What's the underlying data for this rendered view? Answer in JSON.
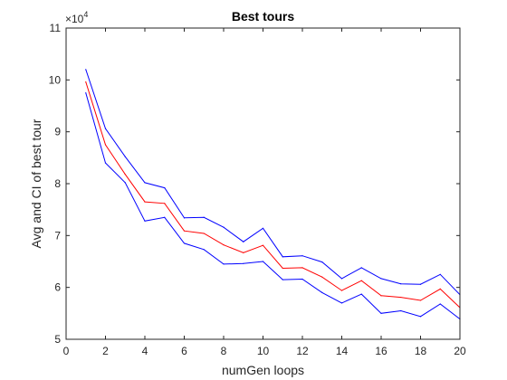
{
  "chart_data": {
    "type": "line",
    "title": "Best tours",
    "xlabel": "numGen loops",
    "ylabel": "Avg and CI of best tour",
    "y_exponent_base": "×10",
    "y_exponent_power": "4",
    "xlim": [
      0,
      20
    ],
    "ylim": [
      5,
      11
    ],
    "xticks": [
      0,
      2,
      4,
      6,
      8,
      10,
      12,
      14,
      16,
      18,
      20
    ],
    "yticks": [
      5,
      6,
      7,
      8,
      9,
      10,
      11
    ],
    "grid": false,
    "legend": "none",
    "x": [
      1,
      2,
      3,
      4,
      5,
      6,
      7,
      8,
      9,
      10,
      11,
      12,
      13,
      14,
      15,
      16,
      17,
      18,
      19,
      20
    ],
    "series": [
      {
        "color": "#0000ff",
        "values": [
          10.2,
          9.06,
          8.52,
          8.02,
          7.92,
          7.34,
          7.35,
          7.16,
          6.88,
          7.14,
          6.59,
          6.61,
          6.49,
          6.17,
          6.38,
          6.17,
          6.07,
          6.06,
          6.25,
          5.86
        ]
      },
      {
        "color": "#ff0000",
        "values": [
          9.96,
          8.75,
          8.18,
          7.65,
          7.62,
          7.09,
          7.04,
          6.82,
          6.67,
          6.81,
          6.37,
          6.38,
          6.2,
          5.94,
          6.13,
          5.84,
          5.81,
          5.75,
          5.97,
          5.61
        ]
      },
      {
        "color": "#0000ff",
        "values": [
          9.75,
          8.4,
          8.02,
          7.28,
          7.35,
          6.85,
          6.73,
          6.45,
          6.46,
          6.5,
          6.15,
          6.16,
          5.9,
          5.7,
          5.87,
          5.5,
          5.55,
          5.44,
          5.68,
          5.39
        ]
      }
    ]
  }
}
